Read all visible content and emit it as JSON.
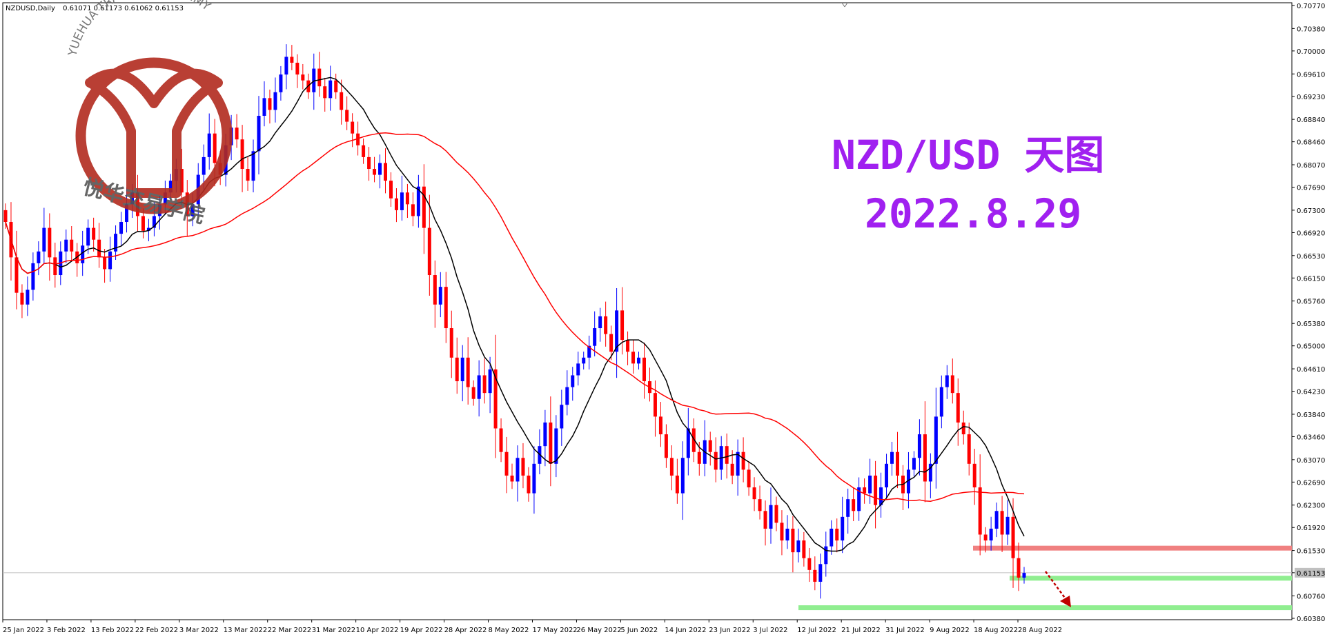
{
  "header": {
    "symbol": "NZDUSD,Daily",
    "ohlc": "0.61071 0.61173 0.61062 0.61153"
  },
  "overlay": {
    "title_line1": "NZD/USD 天图",
    "title_line2": "2022.8.29",
    "title_color": "#a020f0"
  },
  "logo": {
    "arc_text": "YUEHUA TRADING ACADEMY",
    "cn_text": "悦华交易学院",
    "color": "#b22b1f"
  },
  "colors": {
    "bull": "#0000ff",
    "bear": "#ff0000",
    "ma_fast": "#000000",
    "ma_slow": "#ff0000",
    "resistance_zone": "#f08080",
    "support_zone": "#90ee90",
    "price_line": "#c0c0c0"
  },
  "chart_data": {
    "type": "candlestick",
    "symbol": "NZDUSD",
    "timeframe": "Daily",
    "ylim": [
      0.6038,
      0.7077
    ],
    "y_ticks": [
      0.7077,
      0.7038,
      0.7,
      0.6961,
      0.6923,
      0.6884,
      0.6846,
      0.6807,
      0.6769,
      0.673,
      0.6692,
      0.6653,
      0.6615,
      0.6576,
      0.6538,
      0.65,
      0.6461,
      0.6423,
      0.6384,
      0.6346,
      0.6307,
      0.6269,
      0.623,
      0.6192,
      0.6153,
      0.61153,
      0.6076,
      0.6038
    ],
    "current_price": 0.61153,
    "x_tick_labels": [
      "25 Jan 2022",
      "3 Feb 2022",
      "13 Feb 2022",
      "22 Feb 2022",
      "3 Mar 2022",
      "13 Mar 2022",
      "22 Mar 2022",
      "31 Mar 2022",
      "10 Apr 2022",
      "19 Apr 2022",
      "28 Apr 2022",
      "8 May 2022",
      "17 May 2022",
      "26 May 2022",
      "5 Jun 2022",
      "14 Jun 2022",
      "23 Jun 2022",
      "3 Jul 2022",
      "12 Jul 2022",
      "21 Jul 2022",
      "31 Jul 2022",
      "9 Aug 2022",
      "18 Aug 2022",
      "28 Aug 2022"
    ],
    "closes": [
      0.671,
      0.665,
      0.659,
      0.657,
      0.6595,
      0.664,
      0.666,
      0.67,
      0.665,
      0.662,
      0.666,
      0.668,
      0.666,
      0.664,
      0.667,
      0.67,
      0.668,
      0.665,
      0.663,
      0.666,
      0.669,
      0.671,
      0.674,
      0.676,
      0.672,
      0.6695,
      0.67,
      0.672,
      0.674,
      0.676,
      0.678,
      0.68,
      0.676,
      0.672,
      0.674,
      0.679,
      0.682,
      0.686,
      0.681,
      0.679,
      0.684,
      0.687,
      0.685,
      0.68,
      0.678,
      0.683,
      0.689,
      0.692,
      0.69,
      0.693,
      0.696,
      0.699,
      0.698,
      0.696,
      0.695,
      0.693,
      0.697,
      0.694,
      0.692,
      0.695,
      0.693,
      0.69,
      0.688,
      0.686,
      0.684,
      0.682,
      0.68,
      0.679,
      0.681,
      0.678,
      0.675,
      0.673,
      0.676,
      0.674,
      0.672,
      0.677,
      0.67,
      0.662,
      0.657,
      0.66,
      0.653,
      0.648,
      0.644,
      0.648,
      0.643,
      0.641,
      0.645,
      0.642,
      0.646,
      0.636,
      0.632,
      0.628,
      0.627,
      0.631,
      0.628,
      0.625,
      0.63,
      0.633,
      0.637,
      0.63,
      0.636,
      0.64,
      0.643,
      0.645,
      0.647,
      0.648,
      0.65,
      0.653,
      0.655,
      0.652,
      0.649,
      0.656,
      0.651,
      0.649,
      0.647,
      0.648,
      0.644,
      0.642,
      0.638,
      0.635,
      0.631,
      0.628,
      0.625,
      0.631,
      0.636,
      0.632,
      0.63,
      0.634,
      0.632,
      0.629,
      0.633,
      0.63,
      0.628,
      0.632,
      0.629,
      0.626,
      0.624,
      0.622,
      0.619,
      0.623,
      0.62,
      0.617,
      0.619,
      0.615,
      0.617,
      0.614,
      0.612,
      0.61,
      0.613,
      0.616,
      0.619,
      0.617,
      0.621,
      0.624,
      0.622,
      0.626,
      0.625,
      0.628,
      0.623,
      0.626,
      0.63,
      0.632,
      0.628,
      0.625,
      0.629,
      0.631,
      0.635,
      0.627,
      0.63,
      0.638,
      0.643,
      0.645,
      0.642,
      0.637,
      0.635,
      0.63,
      0.626,
      0.618,
      0.617,
      0.619,
      0.622,
      0.618,
      0.621,
      0.614,
      0.6107,
      0.6115
    ]
  }
}
